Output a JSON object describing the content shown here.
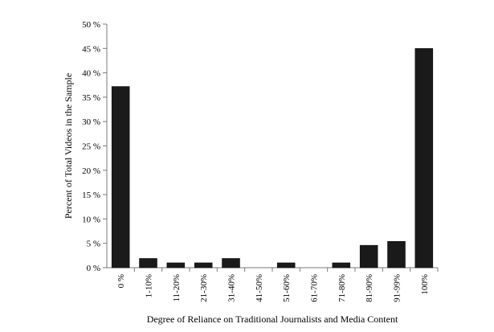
{
  "chart_data": {
    "type": "bar",
    "title": "",
    "xlabel": "Degree of Reliance on Traditional Journalists and Media Content",
    "ylabel": "Percent of Total Videos in the Sample",
    "ylim": [
      0,
      50
    ],
    "yticks": [
      0,
      5,
      10,
      15,
      20,
      25,
      30,
      35,
      40,
      45,
      50
    ],
    "ytick_labels": [
      "0 %",
      "5 %",
      "10 %",
      "15 %",
      "20 %",
      "25 %",
      "30 %",
      "35 %",
      "40 %",
      "45 %",
      "50 %"
    ],
    "categories": [
      "0 %",
      "1-10%",
      "11-20%",
      "21-30%",
      "31-40%",
      "41-50%",
      "51-60%",
      "61-70%",
      "71-80%",
      "81-90%",
      "91-99%",
      "100%"
    ],
    "values": [
      37.2,
      1.9,
      1.0,
      1.0,
      1.9,
      0,
      1.0,
      0,
      1.0,
      4.6,
      5.4,
      45.0
    ],
    "grid": false,
    "legend": "none",
    "bar_color": "#1a1a1a"
  }
}
